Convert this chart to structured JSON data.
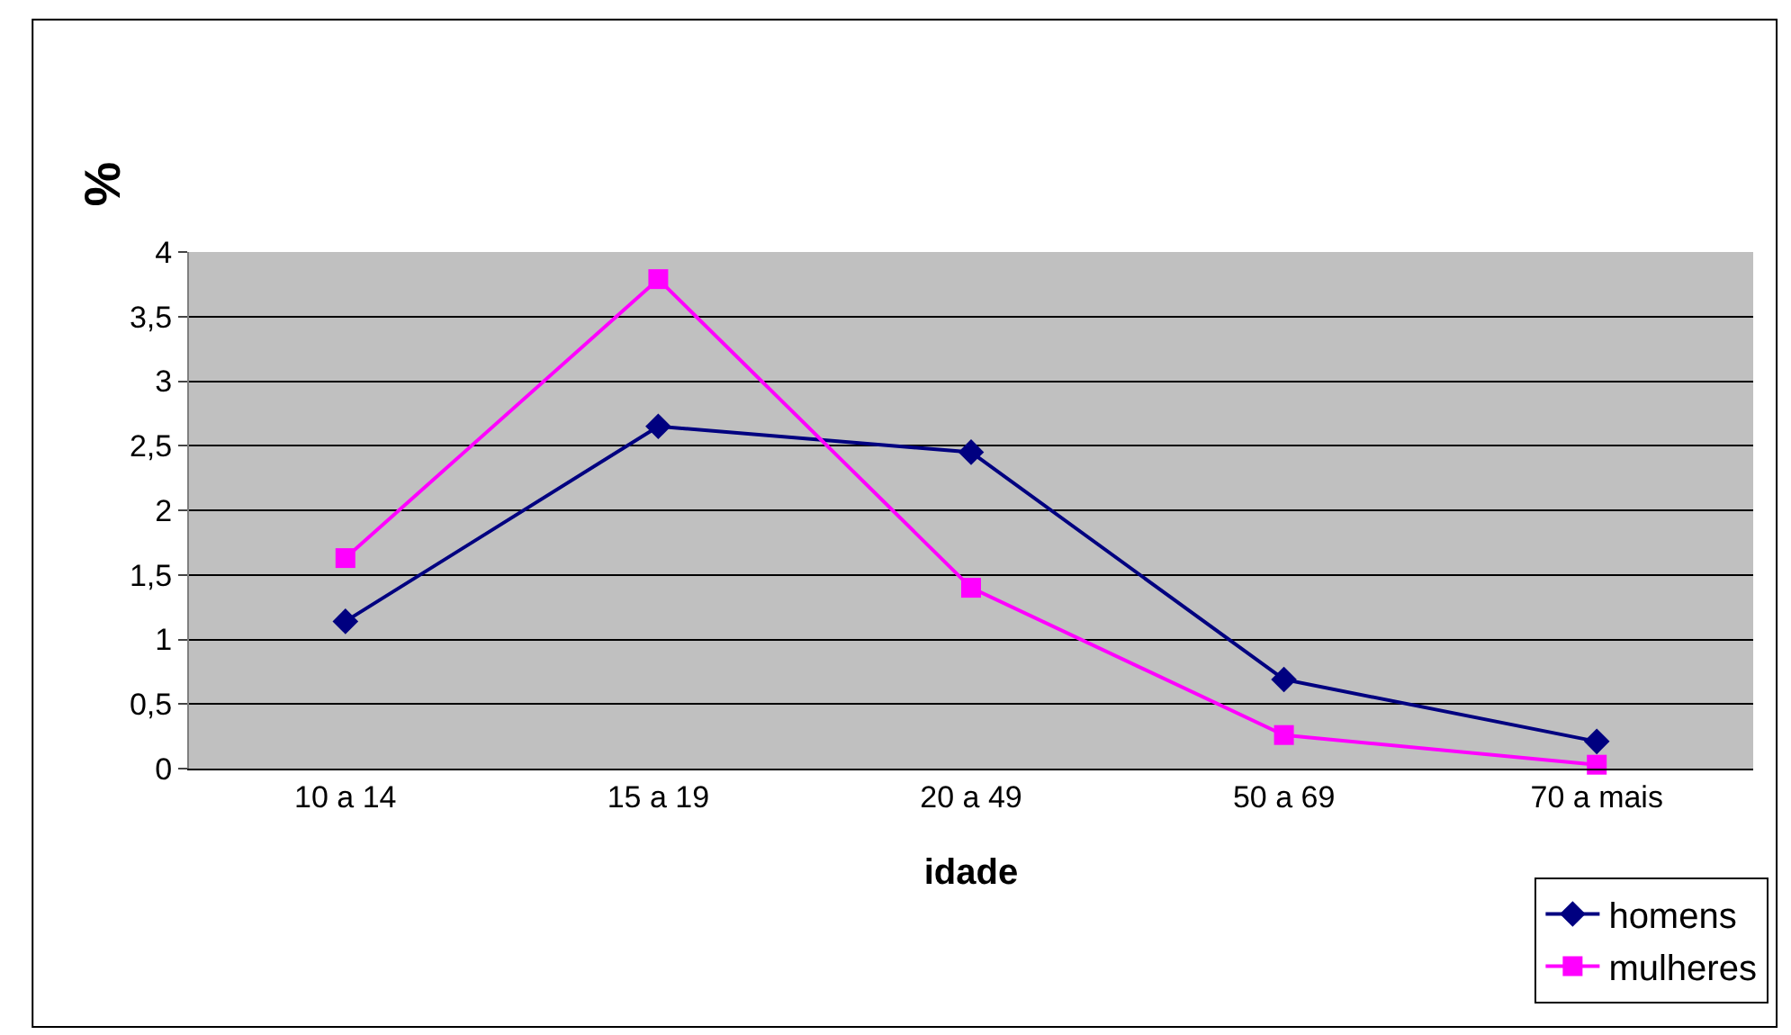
{
  "chart_data": {
    "type": "line",
    "xlabel": "idade",
    "ylabel": "%",
    "categories": [
      "10 a 14",
      "15 a 19",
      "20 a 49",
      "50 a 69",
      "70 a mais"
    ],
    "series": [
      {
        "name": "homens",
        "color": "#000080",
        "values": [
          1.14,
          2.65,
          2.45,
          0.69,
          0.21
        ],
        "marker": "diamond"
      },
      {
        "name": "mulheres",
        "color": "#ff00ff",
        "values": [
          1.63,
          3.79,
          1.4,
          0.26,
          0.03
        ],
        "marker": "square"
      }
    ],
    "ylim": [
      0,
      4
    ],
    "yticks": [
      0,
      {
        "value": 0.5,
        "label": "0,5"
      },
      1,
      {
        "value": 1.5,
        "label": "1,5"
      },
      2,
      {
        "value": 2.5,
        "label": "2,5"
      },
      3,
      {
        "value": 3.5,
        "label": "3,5"
      },
      4
    ],
    "grid": "y",
    "legend": "bottom right",
    "line_style": "solid"
  }
}
